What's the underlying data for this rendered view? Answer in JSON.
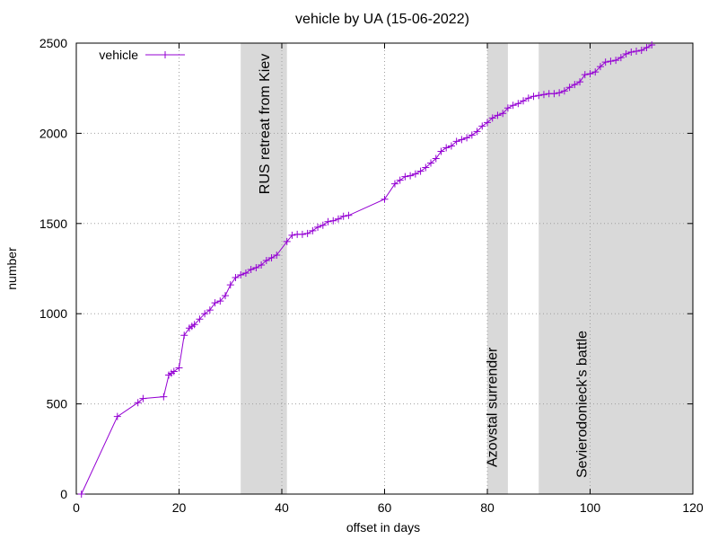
{
  "chart_data": {
    "type": "line",
    "title": "vehicle by UA (15-06-2022)",
    "xlabel": "offset in days",
    "ylabel": "number",
    "xlim": [
      0,
      120
    ],
    "ylim": [
      0,
      2500
    ],
    "xticks": [
      0,
      20,
      40,
      60,
      80,
      100,
      120
    ],
    "yticks": [
      0,
      500,
      1000,
      1500,
      2000,
      2500
    ],
    "grid": true,
    "legend_position": "top-left",
    "series_color": "#9400d3",
    "band_color": "#d9d9d9",
    "bands": [
      {
        "x0": 32,
        "x1": 41,
        "label": "RUS retreat from Kiev"
      },
      {
        "x0": 80,
        "x1": 84,
        "label": "Azovstal surrender"
      },
      {
        "x0": 90,
        "x1": 120,
        "label": "Sevierodonieck's battle"
      }
    ],
    "series": [
      {
        "name": "vehicle",
        "points": [
          [
            1,
            0
          ],
          [
            8,
            430
          ],
          [
            12,
            507
          ],
          [
            13,
            530
          ],
          [
            17,
            540
          ],
          [
            18,
            660
          ],
          [
            18.5,
            670
          ],
          [
            19,
            680
          ],
          [
            20,
            700
          ],
          [
            21,
            880
          ],
          [
            22,
            920
          ],
          [
            22.5,
            930
          ],
          [
            23,
            940
          ],
          [
            24,
            970
          ],
          [
            25,
            1000
          ],
          [
            26,
            1020
          ],
          [
            27,
            1060
          ],
          [
            28,
            1070
          ],
          [
            29,
            1100
          ],
          [
            30,
            1160
          ],
          [
            31,
            1200
          ],
          [
            32,
            1215
          ],
          [
            33,
            1225
          ],
          [
            34,
            1245
          ],
          [
            35,
            1255
          ],
          [
            36,
            1270
          ],
          [
            37,
            1295
          ],
          [
            38,
            1310
          ],
          [
            39,
            1325
          ],
          [
            41,
            1400
          ],
          [
            42,
            1435
          ],
          [
            43,
            1440
          ],
          [
            44,
            1440
          ],
          [
            45,
            1445
          ],
          [
            46,
            1460
          ],
          [
            47,
            1480
          ],
          [
            48,
            1490
          ],
          [
            49,
            1510
          ],
          [
            50,
            1515
          ],
          [
            51,
            1525
          ],
          [
            52,
            1540
          ],
          [
            53,
            1545
          ],
          [
            60,
            1635
          ],
          [
            62,
            1720
          ],
          [
            63,
            1740
          ],
          [
            64,
            1760
          ],
          [
            65,
            1765
          ],
          [
            66,
            1775
          ],
          [
            67,
            1790
          ],
          [
            68,
            1810
          ],
          [
            69,
            1835
          ],
          [
            70,
            1860
          ],
          [
            71,
            1900
          ],
          [
            72,
            1920
          ],
          [
            73,
            1930
          ],
          [
            74,
            1955
          ],
          [
            75,
            1965
          ],
          [
            76,
            1975
          ],
          [
            77,
            1990
          ],
          [
            78,
            2010
          ],
          [
            79,
            2040
          ],
          [
            80,
            2060
          ],
          [
            81,
            2085
          ],
          [
            82,
            2100
          ],
          [
            83,
            2110
          ],
          [
            84,
            2140
          ],
          [
            85,
            2155
          ],
          [
            86,
            2165
          ],
          [
            87,
            2180
          ],
          [
            88,
            2195
          ],
          [
            89,
            2205
          ],
          [
            90,
            2210
          ],
          [
            91,
            2215
          ],
          [
            92,
            2220
          ],
          [
            93,
            2220
          ],
          [
            94,
            2225
          ],
          [
            95,
            2235
          ],
          [
            96,
            2255
          ],
          [
            97,
            2270
          ],
          [
            98,
            2285
          ],
          [
            99,
            2325
          ],
          [
            100,
            2330
          ],
          [
            101,
            2340
          ],
          [
            102,
            2370
          ],
          [
            103,
            2395
          ],
          [
            104,
            2400
          ],
          [
            105,
            2405
          ],
          [
            106,
            2420
          ],
          [
            107,
            2440
          ],
          [
            108,
            2450
          ],
          [
            109,
            2455
          ],
          [
            110,
            2460
          ],
          [
            111,
            2475
          ],
          [
            112,
            2490
          ]
        ]
      }
    ]
  }
}
